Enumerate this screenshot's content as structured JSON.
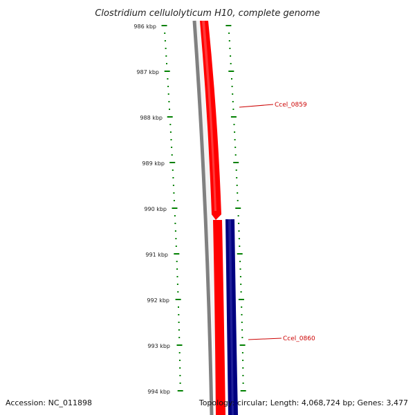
{
  "title": "Clostridium cellulolyticum H10, complete genome",
  "accession": "Accession: NC_011898",
  "topology": "Topology: circular; Length: 4,068,724 bp; Genes: 3,477",
  "ticks": [
    "986 kbp",
    "987 kbp",
    "988 kbp",
    "989 kbp",
    "990 kbp",
    "991 kbp",
    "992 kbp",
    "993 kbp",
    "994 kbp"
  ],
  "genes": [
    {
      "label": "Ccel_0859",
      "strand": "minus",
      "color": "#ff0000"
    },
    {
      "label": "Ccel_0860",
      "strand": "plus",
      "color": "#000080"
    }
  ],
  "colors": {
    "backbone": "#808080",
    "ticks": "#008000",
    "label_line": "#cc0000",
    "highlight": "#f0f0f0"
  }
}
